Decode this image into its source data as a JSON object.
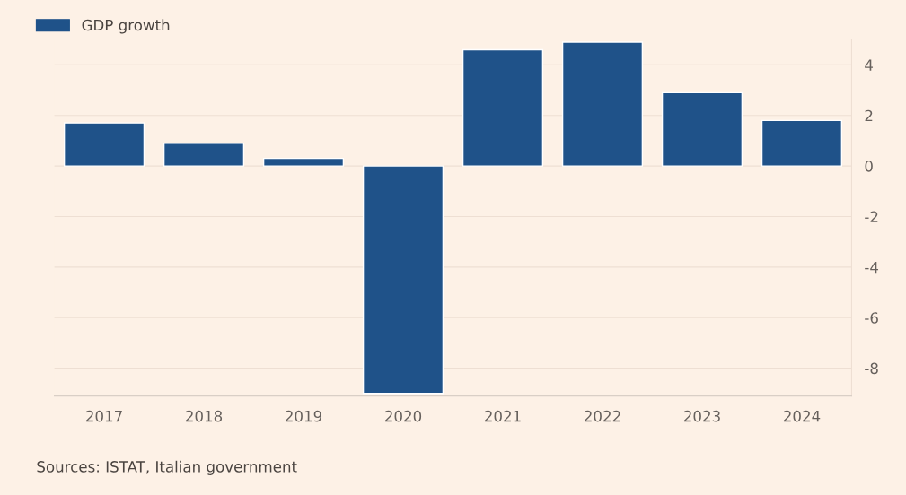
{
  "chart_data": {
    "type": "bar",
    "categories": [
      "2017",
      "2018",
      "2019",
      "2020",
      "2021",
      "2022",
      "2023",
      "2024"
    ],
    "series": [
      {
        "name": "GDP growth",
        "color": "#1f5289",
        "values": [
          1.7,
          0.9,
          0.3,
          -9.0,
          4.6,
          4.9,
          2.9,
          1.8
        ]
      }
    ],
    "ylim": [
      -9.1,
      5
    ],
    "yticks": [
      {
        "value": -8,
        "label": "-8"
      },
      {
        "value": -6,
        "label": "-6"
      },
      {
        "value": -4,
        "label": "-4"
      },
      {
        "value": -2,
        "label": "-2"
      },
      0,
      2,
      4
    ],
    "grid": "y",
    "legend": "top left",
    "annotations": [
      "Sources: ISTAT, Italian government"
    ]
  }
}
